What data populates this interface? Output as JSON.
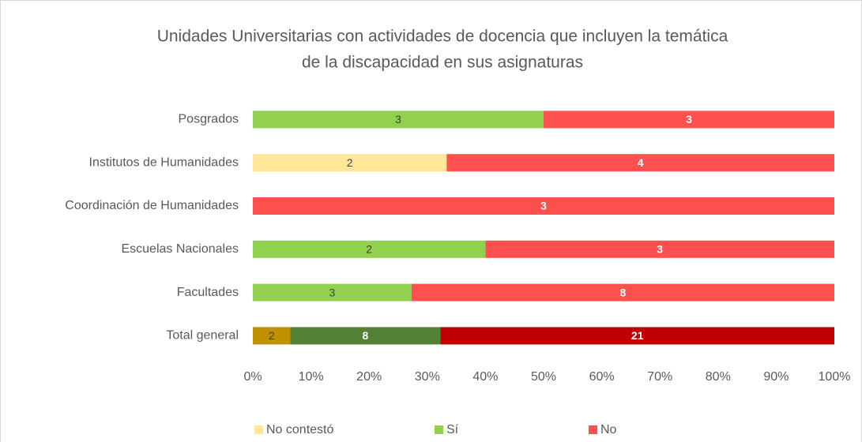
{
  "chart_data": {
    "type": "stacked_bar_100",
    "title": [
      "Unidades Universitarias con actividades de docencia que incluyen la temática",
      "de la discapacidad en sus asignaturas"
    ],
    "categories": [
      "Posgrados",
      "Institutos de Humanidades",
      "Coordinación de Humanidades",
      "Escuelas Nacionales",
      "Facultades",
      "Total general"
    ],
    "series": [
      {
        "name": "No contestó",
        "color": "#ffe699",
        "colors": [
          "#ffe699",
          "#ffe699",
          "#ffe699",
          "#ffe699",
          "#ffe699",
          "#bf9000"
        ],
        "values": [
          null,
          2,
          null,
          null,
          null,
          2
        ]
      },
      {
        "name": "Sí",
        "color": "#92d050",
        "colors": [
          "#92d050",
          "#92d050",
          "#92d050",
          "#92d050",
          "#92d050",
          "#548235"
        ],
        "values": [
          3,
          null,
          null,
          2,
          3,
          8
        ]
      },
      {
        "name": "No",
        "color": "#ff5050",
        "colors": [
          "#ff5050",
          "#ff5050",
          "#ff5050",
          "#ff5050",
          "#ff5050",
          "#c00000"
        ],
        "values": [
          3,
          4,
          3,
          3,
          8,
          21
        ]
      }
    ],
    "xlim": [
      0,
      100
    ],
    "xticks": [
      {
        "value": 0,
        "label": "0%"
      },
      {
        "value": 10,
        "label": "10%"
      },
      {
        "value": 20,
        "label": "20%"
      },
      {
        "value": 30,
        "label": "30%"
      },
      {
        "value": 40,
        "label": "40%"
      },
      {
        "value": 50,
        "label": "50%"
      },
      {
        "value": 60,
        "label": "60%"
      },
      {
        "value": 70,
        "label": "70%"
      },
      {
        "value": 80,
        "label": "80%"
      },
      {
        "value": 90,
        "label": "90%"
      },
      {
        "value": 100,
        "label": "100%"
      }
    ],
    "legend": "bottom"
  }
}
